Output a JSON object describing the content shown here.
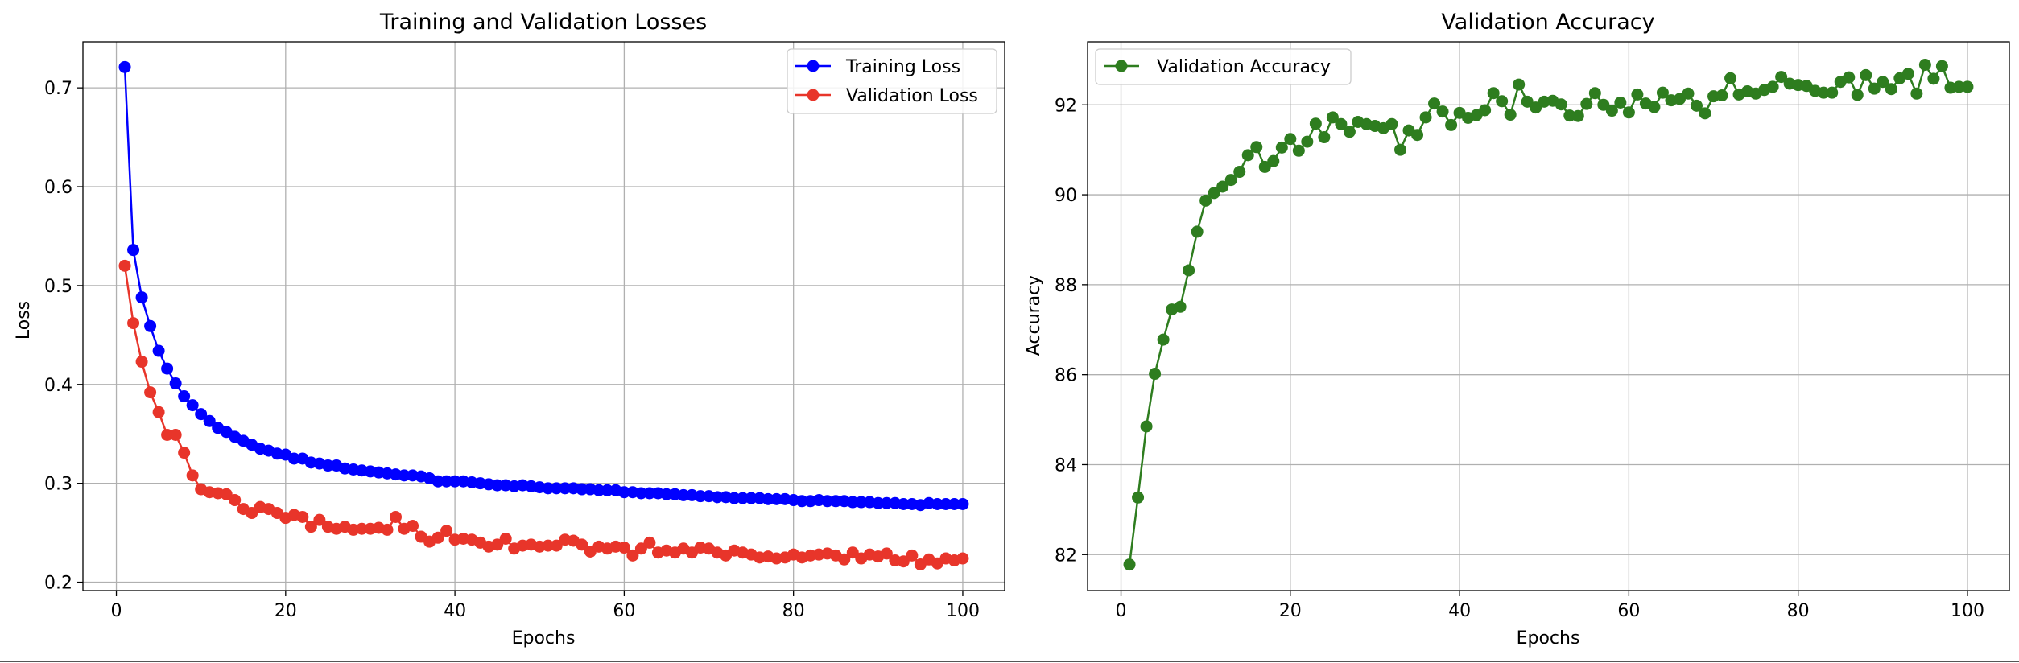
{
  "chart_data": [
    {
      "type": "line",
      "title": "Training and Validation Losses",
      "xlabel": "Epochs",
      "ylabel": "Loss",
      "xlim": [
        -3.95,
        104.95
      ],
      "ylim": [
        0.1915,
        0.7465
      ],
      "xticks": [
        0,
        20,
        40,
        60,
        80,
        100
      ],
      "yticks": [
        0.2,
        0.3,
        0.4,
        0.5,
        0.6,
        0.7
      ],
      "ytick_labels": [
        "0.2",
        "0.3",
        "0.4",
        "0.5",
        "0.6",
        "0.7"
      ],
      "grid": true,
      "legend_position": "top-right",
      "series": [
        {
          "name": "Training Loss",
          "color": "#0000ff",
          "x_start": 1,
          "values": [
            0.721,
            0.536,
            0.488,
            0.459,
            0.434,
            0.416,
            0.401,
            0.388,
            0.379,
            0.37,
            0.363,
            0.356,
            0.352,
            0.347,
            0.343,
            0.339,
            0.335,
            0.333,
            0.33,
            0.329,
            0.325,
            0.325,
            0.321,
            0.32,
            0.318,
            0.318,
            0.315,
            0.314,
            0.313,
            0.312,
            0.311,
            0.31,
            0.309,
            0.308,
            0.308,
            0.307,
            0.305,
            0.302,
            0.302,
            0.302,
            0.302,
            0.301,
            0.3,
            0.299,
            0.298,
            0.298,
            0.297,
            0.298,
            0.297,
            0.296,
            0.295,
            0.295,
            0.295,
            0.295,
            0.294,
            0.294,
            0.293,
            0.293,
            0.293,
            0.291,
            0.291,
            0.29,
            0.29,
            0.29,
            0.289,
            0.289,
            0.288,
            0.288,
            0.287,
            0.287,
            0.286,
            0.286,
            0.285,
            0.285,
            0.285,
            0.285,
            0.284,
            0.284,
            0.284,
            0.283,
            0.282,
            0.282,
            0.283,
            0.282,
            0.282,
            0.282,
            0.281,
            0.281,
            0.281,
            0.28,
            0.28,
            0.28,
            0.279,
            0.279,
            0.278,
            0.28,
            0.279,
            0.279,
            0.279,
            0.279
          ]
        },
        {
          "name": "Validation Loss",
          "color": "#e8352a",
          "x_start": 1,
          "values": [
            0.52,
            0.462,
            0.423,
            0.392,
            0.372,
            0.349,
            0.349,
            0.331,
            0.308,
            0.294,
            0.291,
            0.29,
            0.289,
            0.283,
            0.274,
            0.27,
            0.276,
            0.274,
            0.27,
            0.265,
            0.268,
            0.266,
            0.256,
            0.263,
            0.256,
            0.254,
            0.256,
            0.253,
            0.254,
            0.254,
            0.255,
            0.253,
            0.266,
            0.254,
            0.257,
            0.246,
            0.241,
            0.245,
            0.252,
            0.243,
            0.244,
            0.243,
            0.24,
            0.236,
            0.238,
            0.244,
            0.234,
            0.237,
            0.238,
            0.236,
            0.237,
            0.237,
            0.243,
            0.242,
            0.238,
            0.231,
            0.236,
            0.234,
            0.236,
            0.235,
            0.227,
            0.234,
            0.24,
            0.23,
            0.232,
            0.23,
            0.234,
            0.23,
            0.235,
            0.234,
            0.23,
            0.227,
            0.232,
            0.23,
            0.228,
            0.225,
            0.226,
            0.224,
            0.225,
            0.228,
            0.225,
            0.227,
            0.228,
            0.229,
            0.227,
            0.223,
            0.23,
            0.224,
            0.228,
            0.226,
            0.229,
            0.222,
            0.221,
            0.227,
            0.218,
            0.223,
            0.219,
            0.224,
            0.222,
            0.224
          ]
        }
      ]
    },
    {
      "type": "line",
      "title": "Validation Accuracy",
      "xlabel": "Epochs",
      "ylabel": "Accuracy",
      "xlim": [
        -3.95,
        104.95
      ],
      "ylim": [
        81.2,
        93.4
      ],
      "xticks": [
        0,
        20,
        40,
        60,
        80,
        100
      ],
      "yticks": [
        82,
        84,
        86,
        88,
        90,
        92
      ],
      "ytick_labels": [
        "82",
        "84",
        "86",
        "88",
        "90",
        "92"
      ],
      "grid": true,
      "legend_position": "top-left",
      "series": [
        {
          "name": "Validation Accuracy",
          "color": "#2e7d1f",
          "x_start": 1,
          "values": [
            81.78,
            83.27,
            84.85,
            86.02,
            86.78,
            87.45,
            87.51,
            88.32,
            89.18,
            89.87,
            90.04,
            90.18,
            90.33,
            90.51,
            90.88,
            91.06,
            90.62,
            90.75,
            91.05,
            91.24,
            90.98,
            91.18,
            91.58,
            91.28,
            91.72,
            91.57,
            91.4,
            91.62,
            91.57,
            91.53,
            91.48,
            91.57,
            91.0,
            91.43,
            91.33,
            91.72,
            92.03,
            91.85,
            91.55,
            91.82,
            91.71,
            91.77,
            91.88,
            92.26,
            92.08,
            91.78,
            92.45,
            92.07,
            91.94,
            92.07,
            92.09,
            92.01,
            91.76,
            91.75,
            92.02,
            92.26,
            92.0,
            91.87,
            92.05,
            91.83,
            92.23,
            92.03,
            91.95,
            92.27,
            92.1,
            92.13,
            92.25,
            91.98,
            91.81,
            92.19,
            92.21,
            92.59,
            92.23,
            92.3,
            92.25,
            92.33,
            92.4,
            92.62,
            92.47,
            92.44,
            92.42,
            92.31,
            92.27,
            92.27,
            92.51,
            92.61,
            92.22,
            92.66,
            92.36,
            92.51,
            92.35,
            92.59,
            92.69,
            92.25,
            92.89,
            92.58,
            92.86,
            92.38,
            92.4,
            92.4
          ]
        }
      ]
    }
  ]
}
